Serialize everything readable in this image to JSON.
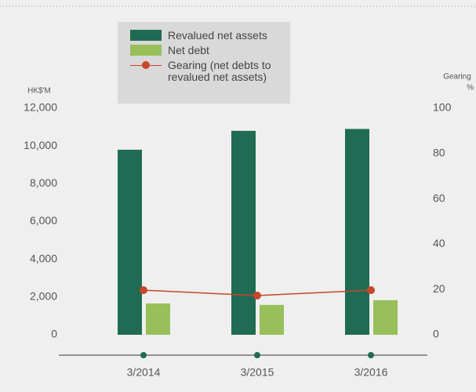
{
  "chart_data": {
    "type": "bar",
    "y_label": "HK$'M",
    "y2_label": "Gearing",
    "y2_unit": "%",
    "categories": [
      "3/2014",
      "3/2015",
      "3/2016"
    ],
    "series": [
      {
        "name": "Revalued net assets",
        "color": "#1f6b53",
        "values": [
          9800,
          10800,
          10900
        ]
      },
      {
        "name": "Net debt",
        "color": "#97bf5a",
        "values": [
          1660,
          1580,
          1830
        ]
      },
      {
        "name": "Gearing (net debts to revalued net assets)",
        "color": "#c8462a",
        "values": [
          19.7,
          17.3,
          19.7
        ],
        "axis": "y2",
        "type": "line"
      }
    ],
    "ylim": [
      0,
      12000
    ],
    "yticks": [
      0,
      {
        "value": 2000,
        "label": "2,000"
      },
      {
        "value": 4000,
        "label": "4,000"
      },
      {
        "value": 6000,
        "label": "6,000"
      },
      {
        "value": 8000,
        "label": "8,000"
      },
      {
        "value": 10000,
        "label": "10,000"
      },
      {
        "value": 12000,
        "label": "12,000"
      }
    ],
    "y2lim": [
      0,
      100
    ],
    "y2ticks": [
      0,
      20,
      40,
      60,
      80,
      100
    ]
  }
}
